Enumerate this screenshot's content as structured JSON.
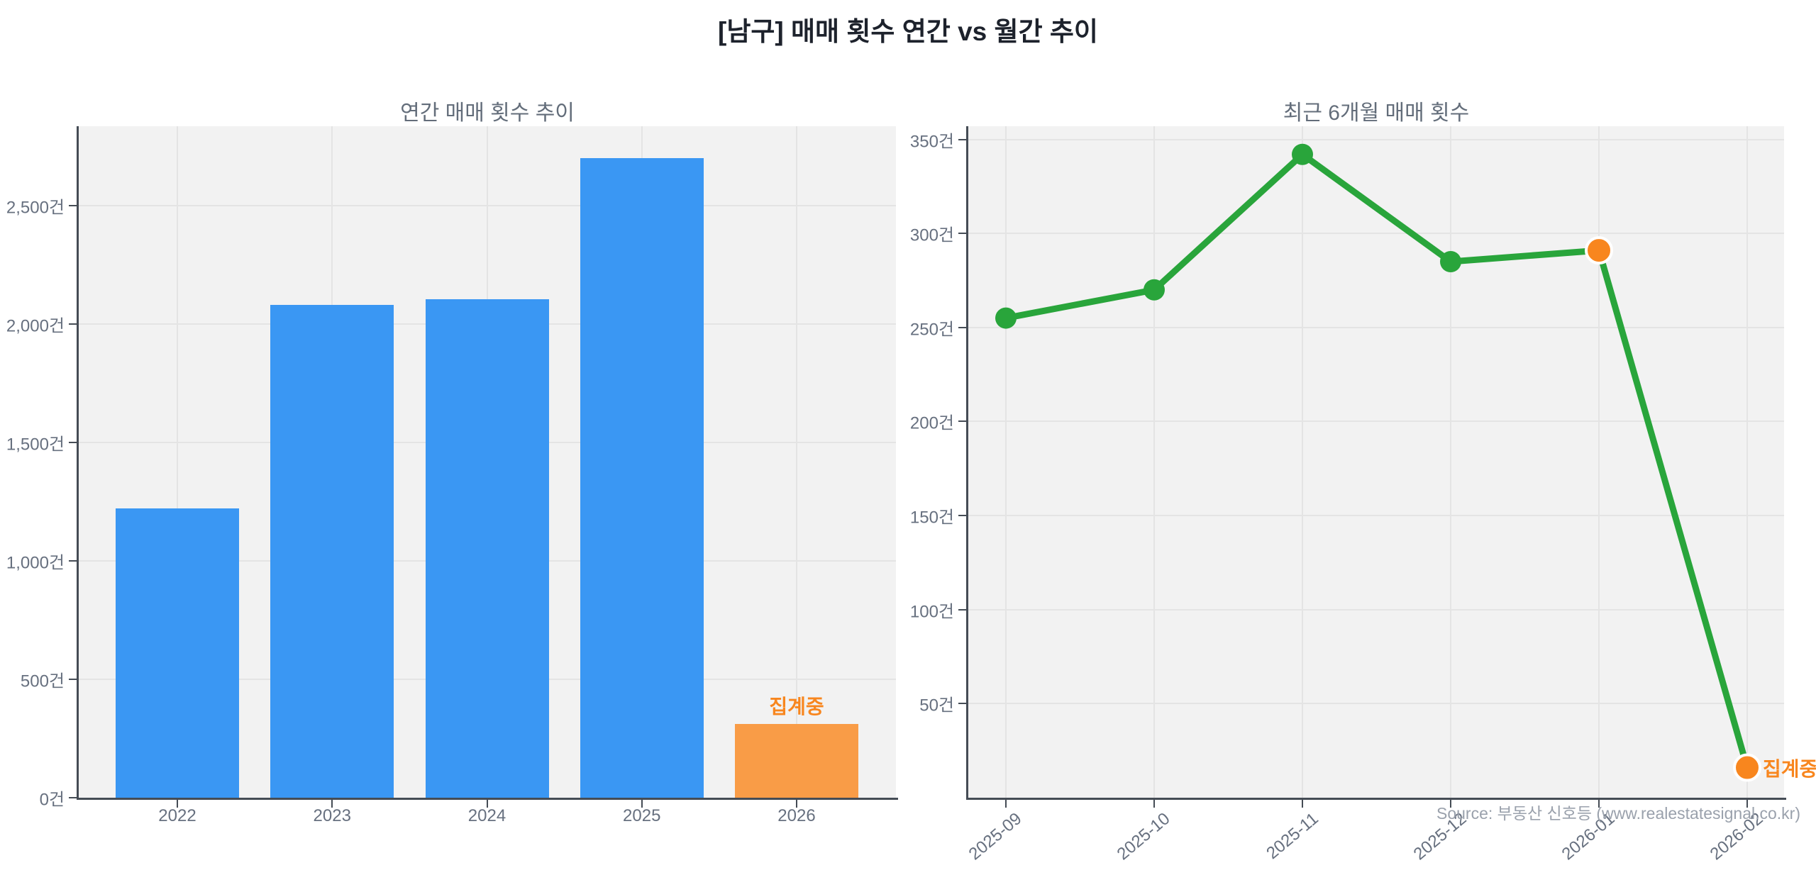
{
  "page": {
    "title": "[남구] 매매 횟수 연간 vs 월간 추이",
    "source": "Source: 부동산 신호등 (www.realestatesignal.co.kr)"
  },
  "colors": {
    "bar_blue": "#3a97f3",
    "bar_orange": "#f99c47",
    "accent_orange": "#f8861e",
    "line_green": "#29a53b",
    "grid": "#e4e4e4",
    "plot_bg": "#f2f2f2",
    "axis": "#454c55",
    "tick_label": "#67707f"
  },
  "chart_data": [
    {
      "type": "bar",
      "title": "연간 매매 횟수 추이",
      "categories": [
        "2022",
        "2023",
        "2024",
        "2025",
        "2026"
      ],
      "values": [
        1220,
        2080,
        2105,
        2700,
        310
      ],
      "bar_colors": [
        "blue",
        "blue",
        "blue",
        "blue",
        "orange"
      ],
      "unit_suffix": "건",
      "yticks": [
        0,
        500,
        1000,
        1500,
        2000,
        2500
      ],
      "ylim": [
        0,
        2835
      ],
      "grid": true,
      "legend": "none",
      "annotation": {
        "text": "집계중",
        "category": "2026"
      }
    },
    {
      "type": "line",
      "title": "최근 6개월 매매 횟수",
      "x": [
        "2025-09",
        "2025-10",
        "2025-11",
        "2025-12",
        "2026-01",
        "2026-02"
      ],
      "values": [
        255,
        270,
        342,
        285,
        291,
        16
      ],
      "point_colors": [
        "green",
        "green",
        "green",
        "green",
        "orange",
        "orange"
      ],
      "unit_suffix": "건",
      "yticks": [
        50,
        100,
        150,
        200,
        250,
        300,
        350
      ],
      "ylim": [
        0,
        357
      ],
      "grid": true,
      "legend": "none",
      "annotation": {
        "text": "집계중",
        "x": "2026-02"
      }
    }
  ]
}
